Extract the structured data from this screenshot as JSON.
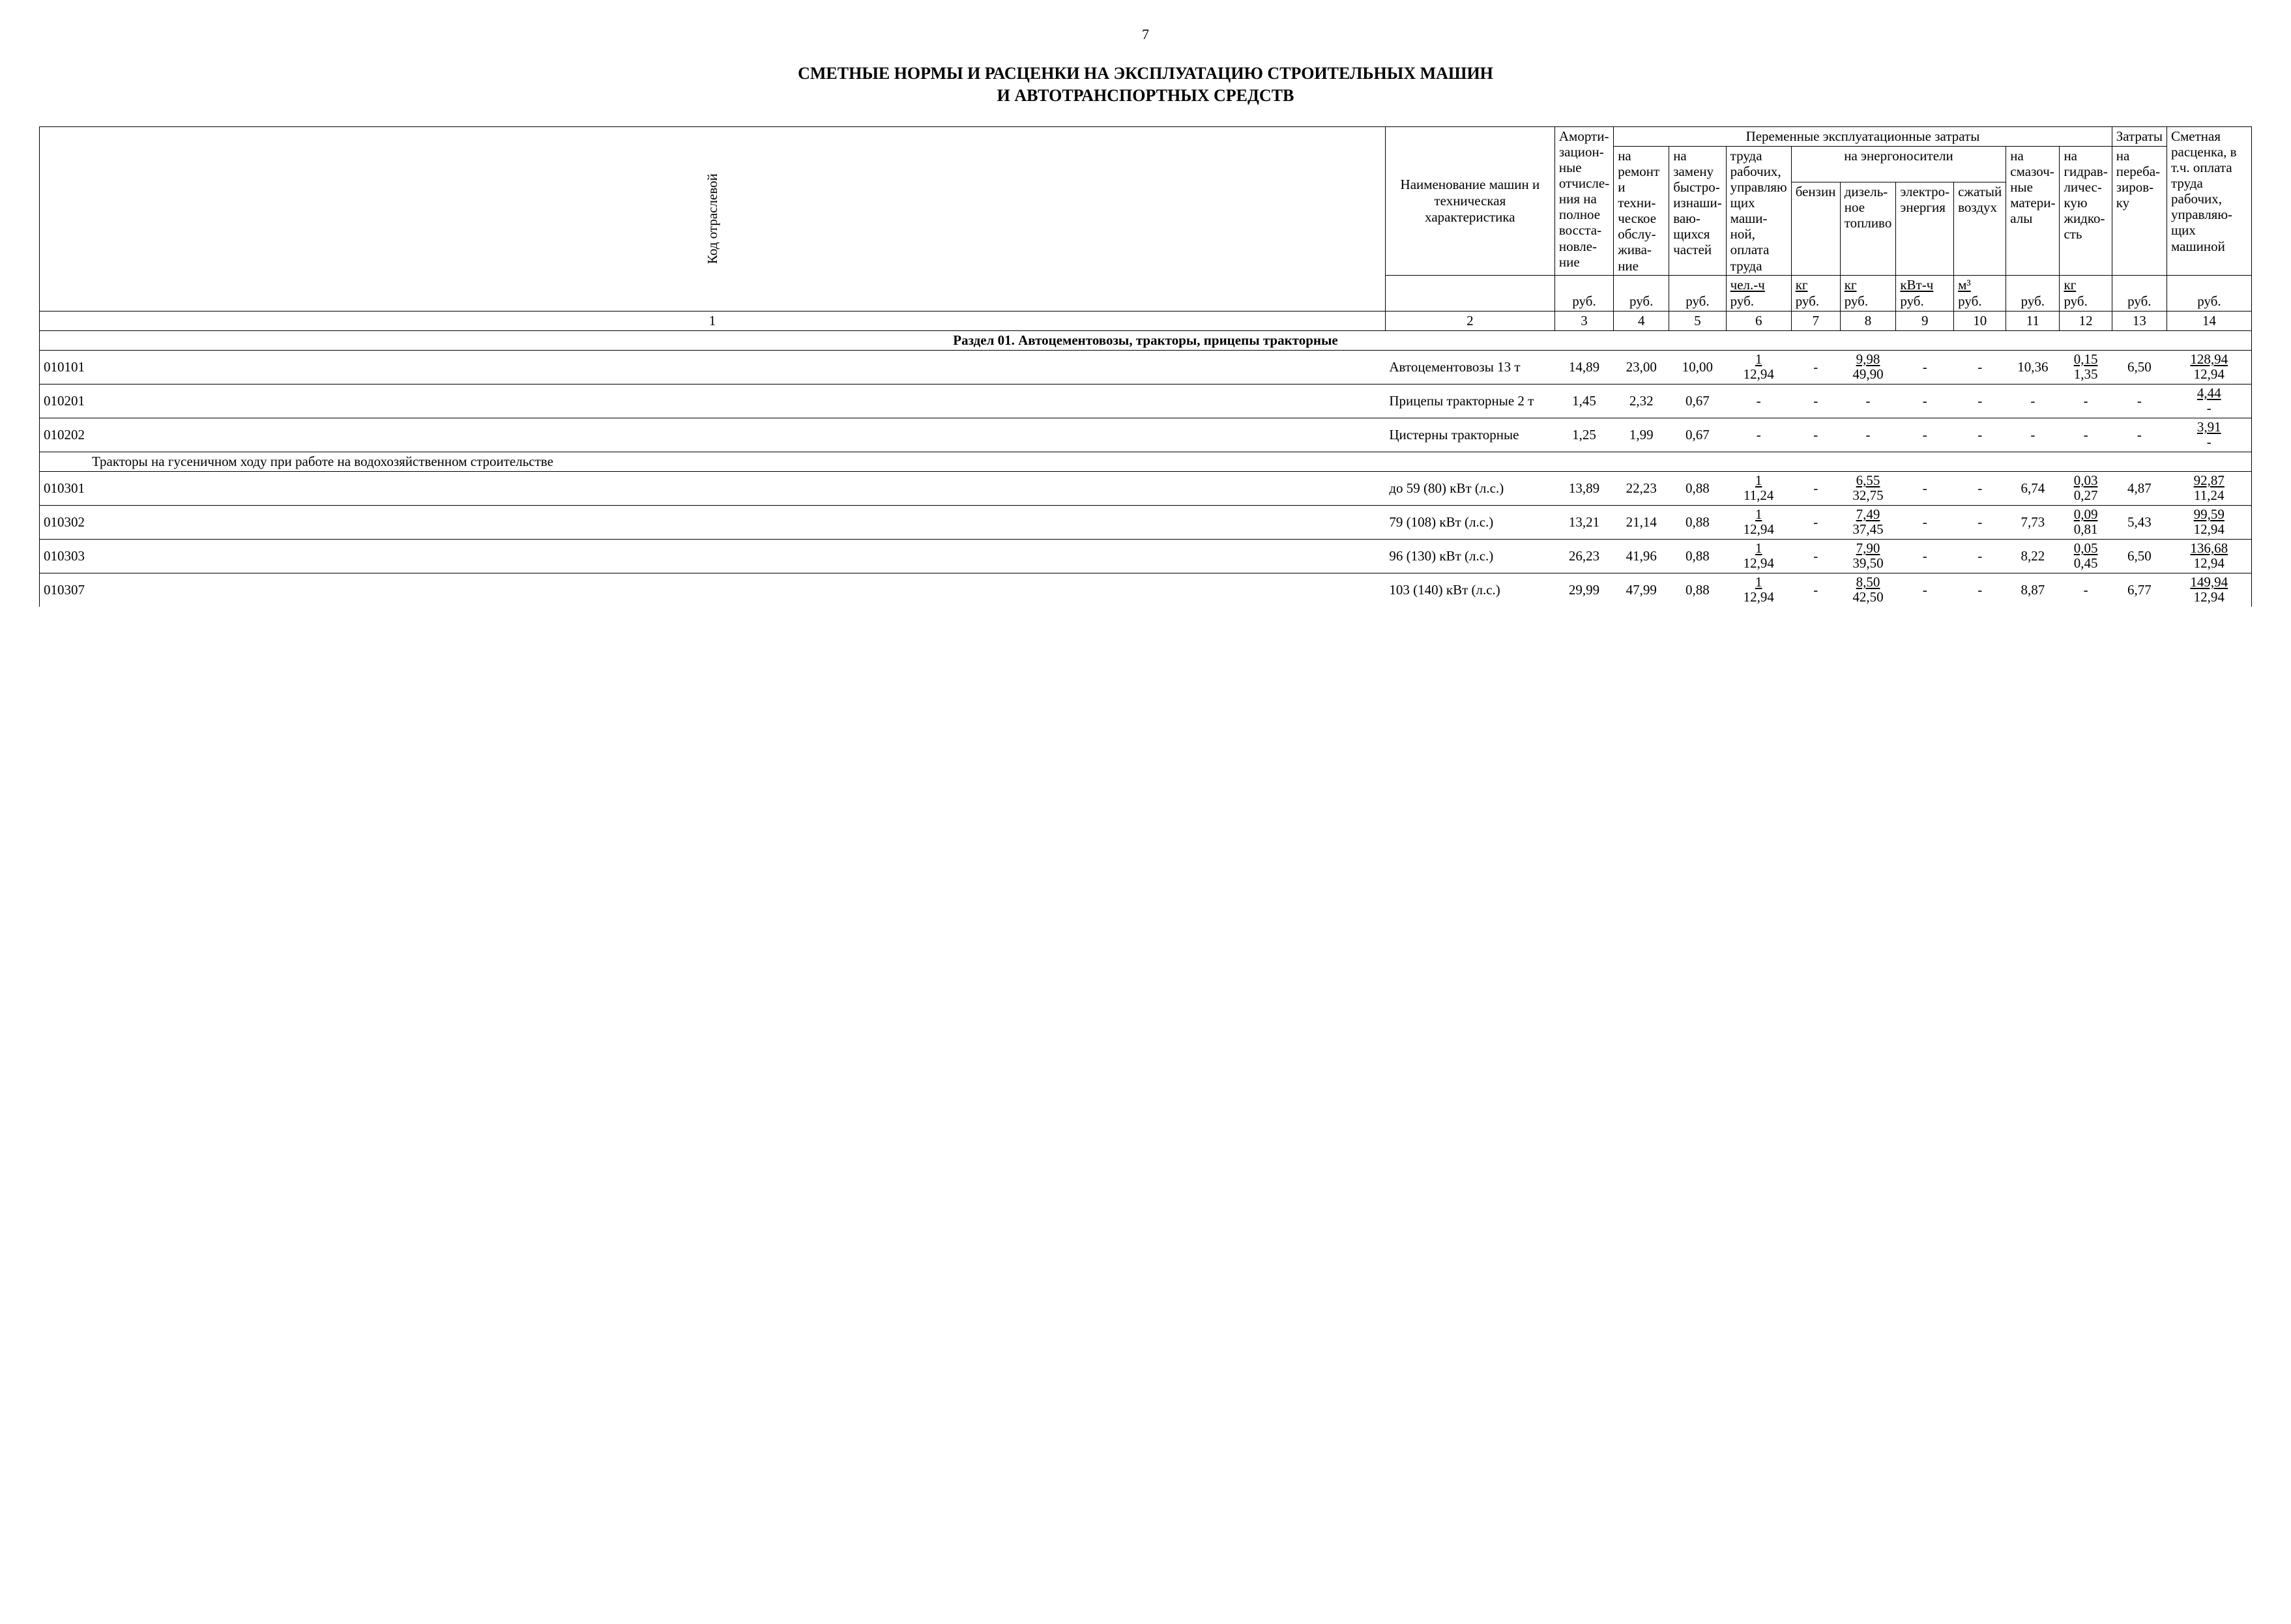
{
  "page_number": "7",
  "title_line1": "СМЕТНЫЕ НОРМЫ И РАСЦЕНКИ НА ЭКСПЛУАТАЦИЮ СТРОИТЕЛЬНЫХ МАШИН",
  "title_line2": "И АВТОТРАНСПОРТНЫХ СРЕДСТВ",
  "headers": {
    "col1": "Код отраслевой",
    "col2": "Наименование машин и техническая характеристика",
    "col3_group": "Аморти-зацион-ные отчисле-ния на полное восста-новле-ние",
    "variable_costs": "Переменные эксплуатационные затраты",
    "col4": "на ремонт и техни-ческое обслу-жива-ние",
    "col5": "на замену быстро-изнаши-ваю-щихся частей",
    "col6": "труда рабочих, управляю щих маши-ной, оплата труда",
    "energy": "на энергоносители",
    "col7": "бензин",
    "col8": "дизель-ное топливо",
    "col9": "электро-энергия",
    "col10": "сжатый воздух",
    "col11": "на смазоч-ные матери-алы",
    "col12": "на гидрав-личес-кую жидко-сть",
    "col13_group": "Затраты",
    "col13": "на переба-зиров-ку",
    "col14": "Сметная расценка, в т.ч. оплата труда рабочих, управляю-щих машиной",
    "u3": "руб.",
    "u4": "руб.",
    "u5": "руб.",
    "u6a": "чел.-ч",
    "u6b": "руб.",
    "u7a": "кг",
    "u7b": "руб.",
    "u8a": "кг",
    "u8b": "руб.",
    "u9a": "кВт-ч",
    "u9b": "руб.",
    "u10a": "м³",
    "u10b": "руб.",
    "u11": "руб.",
    "u12a": "кг",
    "u12b": "руб.",
    "u13": "руб.",
    "u14": "руб."
  },
  "colnums": [
    "1",
    "2",
    "3",
    "4",
    "5",
    "6",
    "7",
    "8",
    "9",
    "10",
    "11",
    "12",
    "13",
    "14"
  ],
  "section1": "Раздел 01. Автоцементовозы, тракторы, прицепы тракторные",
  "subtitle1": "Тракторы на гусеничном ходу при работе на водохозяйственном строительстве",
  "rows": [
    {
      "code": "010101",
      "name": "Автоцементовозы 13 т",
      "c3": "14,89",
      "c4": "23,00",
      "c5": "10,00",
      "c6n": "1",
      "c6d": "12,94",
      "c7": "-",
      "c8n": "9,98",
      "c8d": "49,90",
      "c9": "-",
      "c10": "-",
      "c11": "10,36",
      "c12n": "0,15",
      "c12d": "1,35",
      "c13": "6,50",
      "c14n": "128,94",
      "c14d": "12,94"
    },
    {
      "code": "010201",
      "name": "Прицепы тракторные 2 т",
      "c3": "1,45",
      "c4": "2,32",
      "c5": "0,67",
      "c6n": "",
      "c6d": "-",
      "c7": "-",
      "c8n": "",
      "c8d": "-",
      "c9": "-",
      "c10": "-",
      "c11": "-",
      "c12n": "",
      "c12d": "-",
      "c13": "-",
      "c14n": "4,44",
      "c14d": "-"
    },
    {
      "code": "010202",
      "name": "Цистерны тракторные",
      "c3": "1,25",
      "c4": "1,99",
      "c5": "0,67",
      "c6n": "",
      "c6d": "-",
      "c7": "-",
      "c8n": "",
      "c8d": "-",
      "c9": "-",
      "c10": "-",
      "c11": "-",
      "c12n": "",
      "c12d": "-",
      "c13": "-",
      "c14n": "3,91",
      "c14d": "-"
    },
    {
      "code": "010301",
      "name": "до 59 (80) кВт (л.с.)",
      "c3": "13,89",
      "c4": "22,23",
      "c5": "0,88",
      "c6n": "1",
      "c6d": "11,24",
      "c7": "-",
      "c8n": "6,55",
      "c8d": "32,75",
      "c9": "-",
      "c10": "-",
      "c11": "6,74",
      "c12n": "0,03",
      "c12d": "0,27",
      "c13": "4,87",
      "c14n": "92,87",
      "c14d": "11,24"
    },
    {
      "code": "010302",
      "name": "79 (108) кВт (л.с.)",
      "c3": "13,21",
      "c4": "21,14",
      "c5": "0,88",
      "c6n": "1",
      "c6d": "12,94",
      "c7": "-",
      "c8n": "7,49",
      "c8d": "37,45",
      "c9": "-",
      "c10": "-",
      "c11": "7,73",
      "c12n": "0,09",
      "c12d": "0,81",
      "c13": "5,43",
      "c14n": "99,59",
      "c14d": "12,94"
    },
    {
      "code": "010303",
      "name": "96 (130) кВт (л.с.)",
      "c3": "26,23",
      "c4": "41,96",
      "c5": "0,88",
      "c6n": "1",
      "c6d": "12,94",
      "c7": "-",
      "c8n": "7,90",
      "c8d": "39,50",
      "c9": "-",
      "c10": "-",
      "c11": "8,22",
      "c12n": "0,05",
      "c12d": "0,45",
      "c13": "6,50",
      "c14n": "136,68",
      "c14d": "12,94"
    },
    {
      "code": "010307",
      "name": "103 (140) кВт (л.с.)",
      "c3": "29,99",
      "c4": "47,99",
      "c5": "0,88",
      "c6n": "1",
      "c6d": "12,94",
      "c7": "-",
      "c8n": "8,50",
      "c8d": "42,50",
      "c9": "-",
      "c10": "-",
      "c11": "8,87",
      "c12n": "",
      "c12d": "-",
      "c13": "6,77",
      "c14n": "149,94",
      "c14d": "12,94"
    }
  ]
}
